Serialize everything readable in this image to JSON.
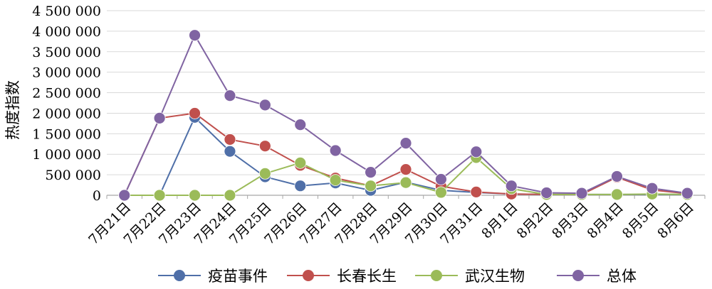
{
  "chart_data": {
    "type": "line",
    "title": "",
    "xlabel": "",
    "ylabel": "热度指数",
    "ylim": [
      0,
      4500000
    ],
    "yticks": [
      0,
      500000,
      1000000,
      1500000,
      2000000,
      2500000,
      3000000,
      3500000,
      4000000,
      4500000
    ],
    "ytick_labels": [
      "0",
      "500 000",
      "1 000 000",
      "1 500 000",
      "2 000 000",
      "2 500 000",
      "3 000 000",
      "3 500 000",
      "4 000 000",
      "4 500 000"
    ],
    "grid": true,
    "legend_position": "bottom",
    "categories": [
      "7月21日",
      "7月22日",
      "7月23日",
      "7月24日",
      "7月25日",
      "7月26日",
      "7月27日",
      "7月28日",
      "7月29日",
      "7月30日",
      "7月31日",
      "8月1日",
      "8月2日",
      "8月3日",
      "8月4日",
      "8月5日",
      "8月6日"
    ],
    "series": [
      {
        "name": "疫苗事件",
        "color": "#4f6fa8",
        "values": [
          0,
          0,
          1900000,
          1070000,
          450000,
          230000,
          300000,
          120000,
          320000,
          120000,
          70000,
          30000,
          20000,
          20000,
          20000,
          20000,
          20000
        ]
      },
      {
        "name": "长春长生",
        "color": "#c0504d",
        "values": [
          0,
          1880000,
          2000000,
          1360000,
          1200000,
          730000,
          420000,
          230000,
          630000,
          220000,
          80000,
          30000,
          20000,
          20000,
          440000,
          130000,
          40000
        ]
      },
      {
        "name": "武汉生物",
        "color": "#9bbb59",
        "values": [
          0,
          0,
          0,
          0,
          530000,
          790000,
          370000,
          230000,
          310000,
          70000,
          920000,
          160000,
          20000,
          20000,
          20000,
          30000,
          20000
        ]
      },
      {
        "name": "总体",
        "color": "#8064a2",
        "values": [
          0,
          1880000,
          3900000,
          2430000,
          2200000,
          1720000,
          1090000,
          560000,
          1270000,
          390000,
          1060000,
          230000,
          60000,
          50000,
          460000,
          170000,
          50000
        ]
      }
    ]
  }
}
